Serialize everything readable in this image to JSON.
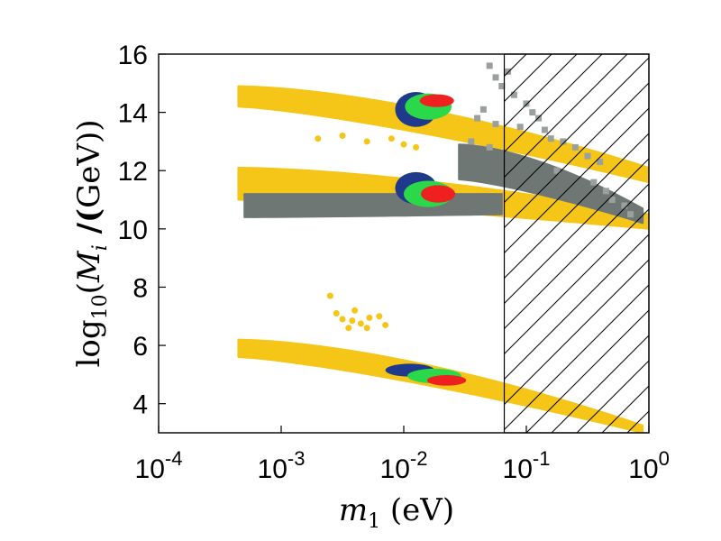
{
  "chart_data": {
    "type": "scatter",
    "title": "",
    "xlabel": "m_1  (eV)",
    "ylabel": "log_10(M_i /(GeV))",
    "x_scale": "log",
    "xlim_log10": [
      -4,
      0
    ],
    "ylim": [
      3,
      16
    ],
    "x_ticks": [
      {
        "base": "10",
        "exp": "-4",
        "log10": -4
      },
      {
        "base": "10",
        "exp": "-3",
        "log10": -3
      },
      {
        "base": "10",
        "exp": "-2",
        "log10": -2
      },
      {
        "base": "10",
        "exp": "-1",
        "log10": -1
      },
      {
        "base": "10",
        "exp": "0",
        "log10": 0
      }
    ],
    "y_ticks": [
      {
        "label": "4",
        "value": 4
      },
      {
        "label": "6",
        "value": 6
      },
      {
        "label": "8",
        "value": 8
      },
      {
        "label": "10",
        "value": 10
      },
      {
        "label": "12",
        "value": 12
      },
      {
        "label": "14",
        "value": 14
      },
      {
        "label": "16",
        "value": 16
      }
    ],
    "excluded_region": {
      "x_min_log10": -1.18,
      "x_max_log10": 0,
      "pattern": "hatched"
    },
    "colors": {
      "yellow": "#f5c518",
      "grey": "#6e7774",
      "navy": "#1f3a8a",
      "green": "#2bd84a",
      "red": "#ee2020"
    },
    "series": [
      {
        "name": "yellow-band-M3",
        "color": "yellow",
        "band": {
          "x_start": -3.35,
          "x_end": 0,
          "upper_start": 14.9,
          "upper_end": 12.1,
          "lower_start": 14.2,
          "lower_end": 11.6,
          "bend": 0.5
        }
      },
      {
        "name": "yellow-band-M2",
        "color": "yellow",
        "band": {
          "x_start": -3.35,
          "x_end": 0,
          "upper_start": 12.1,
          "upper_end": 10.5,
          "lower_start": 11.0,
          "lower_end": 10.0,
          "bend": 0.4
        }
      },
      {
        "name": "yellow-band-M1",
        "color": "yellow",
        "band": {
          "x_start": -3.35,
          "x_end": -0.05,
          "upper_start": 6.2,
          "upper_end": 3.25,
          "lower_start": 5.6,
          "lower_end": 3.0,
          "bend": 0.0
        }
      },
      {
        "name": "grey-band-lower",
        "color": "grey",
        "band": {
          "x_start": -3.3,
          "x_end": -1.2,
          "upper_start": 11.2,
          "upper_end": 11.2,
          "lower_start": 10.4,
          "lower_end": 10.5,
          "bend": 0.0
        }
      },
      {
        "name": "grey-band-upper",
        "color": "grey",
        "band": {
          "x_start": -1.55,
          "x_end": -0.05,
          "upper_start": 12.9,
          "upper_end": 10.7,
          "lower_start": 11.7,
          "lower_end": 10.2,
          "bend": 0.0
        }
      },
      {
        "name": "navy-cluster-M3",
        "color": "navy",
        "ellipse": {
          "x": -1.9,
          "y": 14.1,
          "rx_dec": 0.17,
          "ry": 0.6
        }
      },
      {
        "name": "green-cluster-M3",
        "color": "green",
        "ellipse": {
          "x": -1.8,
          "y": 14.2,
          "rx_dec": 0.19,
          "ry": 0.45
        }
      },
      {
        "name": "red-cluster-M3",
        "color": "red",
        "ellipse": {
          "x": -1.73,
          "y": 14.4,
          "rx_dec": 0.14,
          "ry": 0.22
        }
      },
      {
        "name": "navy-cluster-M2",
        "color": "navy",
        "ellipse": {
          "x": -1.9,
          "y": 11.4,
          "rx_dec": 0.17,
          "ry": 0.55
        }
      },
      {
        "name": "green-cluster-M2",
        "color": "green",
        "ellipse": {
          "x": -1.8,
          "y": 11.2,
          "rx_dec": 0.2,
          "ry": 0.45
        }
      },
      {
        "name": "red-cluster-M2",
        "color": "red",
        "ellipse": {
          "x": -1.72,
          "y": 11.2,
          "rx_dec": 0.14,
          "ry": 0.3
        }
      },
      {
        "name": "navy-cluster-M1",
        "color": "navy",
        "ellipse": {
          "x": -1.95,
          "y": 5.15,
          "rx_dec": 0.2,
          "ry": 0.22
        }
      },
      {
        "name": "green-cluster-M1",
        "color": "green",
        "ellipse": {
          "x": -1.75,
          "y": 4.95,
          "rx_dec": 0.22,
          "ry": 0.25
        }
      },
      {
        "name": "red-cluster-M1",
        "color": "red",
        "ellipse": {
          "x": -1.65,
          "y": 4.8,
          "rx_dec": 0.16,
          "ry": 0.18
        }
      },
      {
        "name": "yellow-outliers",
        "color": "yellow",
        "points": [
          {
            "x": -2.6,
            "y": 7.7
          },
          {
            "x": -2.55,
            "y": 7.1
          },
          {
            "x": -2.5,
            "y": 6.9
          },
          {
            "x": -2.42,
            "y": 6.85
          },
          {
            "x": -2.35,
            "y": 6.75
          },
          {
            "x": -2.28,
            "y": 6.95
          },
          {
            "x": -2.2,
            "y": 7.0
          },
          {
            "x": -2.45,
            "y": 6.6
          },
          {
            "x": -2.3,
            "y": 6.6
          },
          {
            "x": -2.15,
            "y": 6.7
          },
          {
            "x": -2.4,
            "y": 7.2
          },
          {
            "x": -2.5,
            "y": 13.2
          },
          {
            "x": -2.3,
            "y": 13.0
          },
          {
            "x": -2.1,
            "y": 13.1
          },
          {
            "x": -2.0,
            "y": 12.9
          },
          {
            "x": -2.7,
            "y": 13.1
          },
          {
            "x": -1.9,
            "y": 12.8
          }
        ]
      },
      {
        "name": "grey-outliers",
        "color": "grey",
        "points": [
          {
            "x": -1.3,
            "y": 15.6
          },
          {
            "x": -1.25,
            "y": 15.2
          },
          {
            "x": -1.2,
            "y": 14.9
          },
          {
            "x": -1.15,
            "y": 15.4
          },
          {
            "x": -1.1,
            "y": 14.6
          },
          {
            "x": -1.0,
            "y": 14.3
          },
          {
            "x": -0.95,
            "y": 14.0
          },
          {
            "x": -0.9,
            "y": 13.8
          },
          {
            "x": -0.85,
            "y": 13.4
          },
          {
            "x": -0.8,
            "y": 13.1
          },
          {
            "x": -0.7,
            "y": 13.0
          },
          {
            "x": -0.6,
            "y": 12.8
          },
          {
            "x": -1.35,
            "y": 14.1
          },
          {
            "x": -1.4,
            "y": 13.8
          },
          {
            "x": -1.25,
            "y": 13.6
          },
          {
            "x": -1.05,
            "y": 13.5
          },
          {
            "x": -0.5,
            "y": 12.5
          },
          {
            "x": -0.4,
            "y": 12.3
          },
          {
            "x": -0.45,
            "y": 11.6
          },
          {
            "x": -0.35,
            "y": 11.3
          },
          {
            "x": -0.3,
            "y": 11.0
          },
          {
            "x": -0.2,
            "y": 10.8
          },
          {
            "x": -0.15,
            "y": 10.5
          },
          {
            "x": -1.3,
            "y": 12.8
          },
          {
            "x": -1.45,
            "y": 13.0
          },
          {
            "x": -0.75,
            "y": 12.0
          }
        ]
      }
    ]
  }
}
